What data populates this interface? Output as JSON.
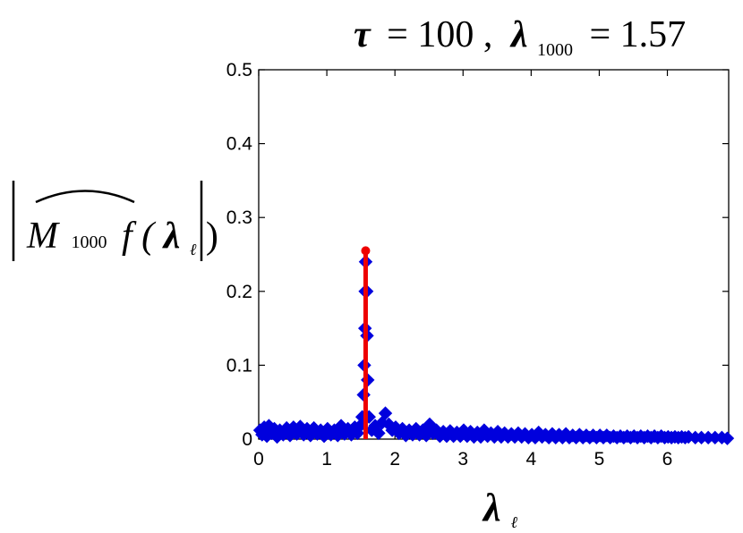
{
  "chart_data": {
    "type": "scatter",
    "title": {
      "tau_symbol": "τ",
      "tau_value": "= 100 ,",
      "lambda_symbol": "λ",
      "lambda_sub": "1000",
      "lambda_value": "= 1.57"
    },
    "xlabel": {
      "symbol": "λ",
      "sub": "ℓ"
    },
    "ylabel": {
      "M": "M",
      "M_sub": "1000",
      "f_open": "f (",
      "lambda": "λ",
      "lambda_sub": "ℓ",
      "close": ")"
    },
    "xlim": [
      0,
      6.9
    ],
    "ylim": [
      0,
      0.5
    ],
    "xticks": [
      {
        "value": 0,
        "label": "0"
      },
      {
        "value": 1,
        "label": "1"
      },
      {
        "value": 2,
        "label": "2"
      },
      {
        "value": 3,
        "label": "3"
      },
      {
        "value": 4,
        "label": "4"
      },
      {
        "value": 5,
        "label": "5"
      },
      {
        "value": 6,
        "label": "6"
      }
    ],
    "yticks": [
      {
        "value": 0,
        "label": "0"
      },
      {
        "value": 0.1,
        "label": "0.1"
      },
      {
        "value": 0.2,
        "label": "0.2"
      },
      {
        "value": 0.3,
        "label": "0.3"
      },
      {
        "value": 0.4,
        "label": "0.4"
      },
      {
        "value": 0.5,
        "label": "0.5"
      }
    ],
    "grid": false,
    "series": [
      {
        "color": "#0000dd",
        "marker": "diamond",
        "points": [
          [
            0.02,
            0.012
          ],
          [
            0.05,
            0.006
          ],
          [
            0.08,
            0.016
          ],
          [
            0.12,
            0.004
          ],
          [
            0.15,
            0.018
          ],
          [
            0.19,
            0.008
          ],
          [
            0.23,
            0.014
          ],
          [
            0.27,
            0.003
          ],
          [
            0.31,
            0.012
          ],
          [
            0.36,
            0.006
          ],
          [
            0.41,
            0.015
          ],
          [
            0.46,
            0.005
          ],
          [
            0.51,
            0.016
          ],
          [
            0.56,
            0.007
          ],
          [
            0.61,
            0.017
          ],
          [
            0.66,
            0.006
          ],
          [
            0.71,
            0.014
          ],
          [
            0.76,
            0.005
          ],
          [
            0.81,
            0.015
          ],
          [
            0.86,
            0.007
          ],
          [
            0.91,
            0.012
          ],
          [
            0.96,
            0.004
          ],
          [
            1.01,
            0.014
          ],
          [
            1.06,
            0.006
          ],
          [
            1.11,
            0.012
          ],
          [
            1.16,
            0.005
          ],
          [
            1.21,
            0.018
          ],
          [
            1.26,
            0.007
          ],
          [
            1.31,
            0.014
          ],
          [
            1.36,
            0.006
          ],
          [
            1.41,
            0.016
          ],
          [
            1.45,
            0.008
          ],
          [
            1.49,
            0.018
          ],
          [
            1.52,
            0.03
          ],
          [
            1.54,
            0.06
          ],
          [
            1.55,
            0.1
          ],
          [
            1.56,
            0.15
          ],
          [
            1.565,
            0.2
          ],
          [
            1.57,
            0.24
          ],
          [
            1.585,
            0.2
          ],
          [
            1.59,
            0.14
          ],
          [
            1.6,
            0.08
          ],
          [
            1.62,
            0.03
          ],
          [
            1.66,
            0.012
          ],
          [
            1.71,
            0.018
          ],
          [
            1.76,
            0.008
          ],
          [
            1.81,
            0.022
          ],
          [
            1.86,
            0.035
          ],
          [
            1.91,
            0.02
          ],
          [
            1.96,
            0.012
          ],
          [
            2.01,
            0.016
          ],
          [
            2.06,
            0.008
          ],
          [
            2.11,
            0.014
          ],
          [
            2.16,
            0.005
          ],
          [
            2.21,
            0.012
          ],
          [
            2.26,
            0.006
          ],
          [
            2.31,
            0.014
          ],
          [
            2.36,
            0.006
          ],
          [
            2.41,
            0.012
          ],
          [
            2.46,
            0.005
          ],
          [
            2.51,
            0.02
          ],
          [
            2.56,
            0.008
          ],
          [
            2.61,
            0.012
          ],
          [
            2.66,
            0.004
          ],
          [
            2.71,
            0.01
          ],
          [
            2.76,
            0.004
          ],
          [
            2.81,
            0.011
          ],
          [
            2.86,
            0.004
          ],
          [
            2.91,
            0.009
          ],
          [
            2.96,
            0.004
          ],
          [
            3.01,
            0.012
          ],
          [
            3.06,
            0.004
          ],
          [
            3.11,
            0.01
          ],
          [
            3.16,
            0.003
          ],
          [
            3.21,
            0.009
          ],
          [
            3.26,
            0.003
          ],
          [
            3.31,
            0.012
          ],
          [
            3.36,
            0.004
          ],
          [
            3.41,
            0.008
          ],
          [
            3.46,
            0.003
          ],
          [
            3.51,
            0.01
          ],
          [
            3.56,
            0.003
          ],
          [
            3.61,
            0.008
          ],
          [
            3.66,
            0.003
          ],
          [
            3.71,
            0.007
          ],
          [
            3.76,
            0.003
          ],
          [
            3.81,
            0.008
          ],
          [
            3.86,
            0.003
          ],
          [
            3.91,
            0.007
          ],
          [
            3.96,
            0.002
          ],
          [
            4.01,
            0.006
          ],
          [
            4.06,
            0.002
          ],
          [
            4.11,
            0.009
          ],
          [
            4.16,
            0.003
          ],
          [
            4.21,
            0.006
          ],
          [
            4.26,
            0.002
          ],
          [
            4.31,
            0.007
          ],
          [
            4.36,
            0.002
          ],
          [
            4.41,
            0.006
          ],
          [
            4.46,
            0.002
          ],
          [
            4.51,
            0.007
          ],
          [
            4.56,
            0.002
          ],
          [
            4.61,
            0.005
          ],
          [
            4.66,
            0.002
          ],
          [
            4.71,
            0.006
          ],
          [
            4.76,
            0.002
          ],
          [
            4.81,
            0.005
          ],
          [
            4.86,
            0.002
          ],
          [
            4.91,
            0.005
          ],
          [
            4.96,
            0.002
          ],
          [
            5.01,
            0.005
          ],
          [
            5.06,
            0.002
          ],
          [
            5.11,
            0.005
          ],
          [
            5.16,
            0.002
          ],
          [
            5.21,
            0.004
          ],
          [
            5.26,
            0.002
          ],
          [
            5.31,
            0.004
          ],
          [
            5.36,
            0.002
          ],
          [
            5.41,
            0.004
          ],
          [
            5.46,
            0.002
          ],
          [
            5.51,
            0.004
          ],
          [
            5.56,
            0.002
          ],
          [
            5.61,
            0.004
          ],
          [
            5.66,
            0.002
          ],
          [
            5.71,
            0.004
          ],
          [
            5.76,
            0.002
          ],
          [
            5.81,
            0.004
          ],
          [
            5.86,
            0.002
          ],
          [
            5.91,
            0.004
          ],
          [
            5.96,
            0.002
          ],
          [
            6.01,
            0.003
          ],
          [
            6.06,
            0.002
          ],
          [
            6.11,
            0.003
          ],
          [
            6.16,
            0.002
          ],
          [
            6.21,
            0.003
          ],
          [
            6.26,
            0.002
          ],
          [
            6.31,
            0.003
          ],
          [
            6.41,
            0.002
          ],
          [
            6.5,
            0.002
          ],
          [
            6.6,
            0.002
          ],
          [
            6.7,
            0.002
          ],
          [
            6.8,
            0.002
          ],
          [
            6.88,
            0.001
          ]
        ]
      },
      {
        "color": "#ee0000",
        "marker": "circle",
        "type": "stem",
        "points": [
          [
            1.57,
            0.255
          ]
        ]
      }
    ]
  }
}
